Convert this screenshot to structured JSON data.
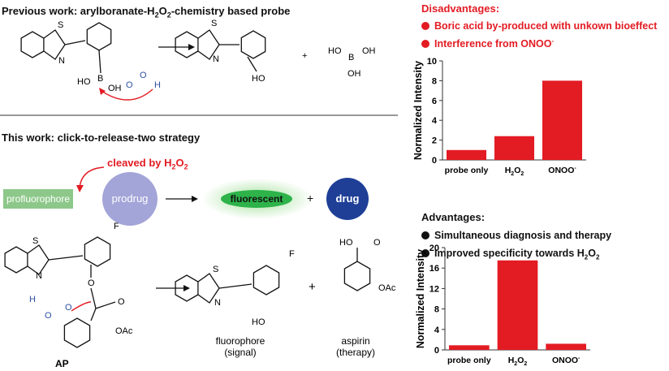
{
  "previous": {
    "title_pre": "Previous work: arylboranate-H",
    "title_mid": "O",
    "title_post": "-chemistry based probe",
    "labels": {
      "S": "S",
      "N": "N",
      "HO": "HO",
      "B": "B",
      "OH": "OH",
      "O": "O",
      "H": "H",
      "plus": "+"
    }
  },
  "this_work": {
    "title": "This work: click-to-release-two strategy",
    "cleaved": "cleaved by H",
    "cleaved_sub": "2",
    "cleaved_o": "O",
    "cleaved_sub2": "2",
    "profluorophore": "profluorophore",
    "prodrug": "prodrug",
    "fluorescent": "fluorescent",
    "drug": "drug",
    "plus": "+",
    "labels": {
      "S": "S",
      "N": "N",
      "F": "F",
      "H": "H",
      "O": "O",
      "OAc": "OAc",
      "HO": "HO",
      "AP": "AP"
    },
    "fluorophore": "fluorophore",
    "fluorophore_sub": "(signal)",
    "aspirin": "aspirin",
    "aspirin_sub": "(therapy)"
  },
  "disadvantages": {
    "title": "Disadvantages:",
    "items": [
      "Boric acid by-produced with unkown bioeffect",
      "Interference from ONOO"
    ],
    "item2_sup": "-"
  },
  "advantages": {
    "title": "Advantages:",
    "items": [
      "Simultaneous diagnosis and therapy",
      "Improved specificity towards H"
    ],
    "item2_sub": "2",
    "item2_o": "O",
    "item2_sub2": "2"
  },
  "colors": {
    "bar": "#e31b23",
    "accent_red": "#e31b23",
    "prodrug": "#a3a4d8",
    "drug": "#1f3f97",
    "fluorescent": "#2db34a",
    "profluorophore": "#8dc88a",
    "peroxide_blue": "#2c4fa3"
  },
  "chart_data": [
    {
      "type": "bar",
      "ylabel": "Normalized Intensity",
      "categories": [
        "probe only",
        "H2O2",
        "ONOO-"
      ],
      "values": [
        1.0,
        2.4,
        8.0
      ],
      "ylim": [
        0,
        10
      ],
      "yticks": [
        0,
        2,
        4,
        6,
        8,
        10
      ],
      "grid": false
    },
    {
      "type": "bar",
      "ylabel": "Normalized Intensity",
      "categories": [
        "probe only",
        "H2O2",
        "ONOO-"
      ],
      "values": [
        0.9,
        17.5,
        1.2
      ],
      "ylim": [
        0,
        20
      ],
      "yticks": [
        0,
        4,
        8,
        12,
        16,
        20
      ],
      "grid": false
    }
  ]
}
